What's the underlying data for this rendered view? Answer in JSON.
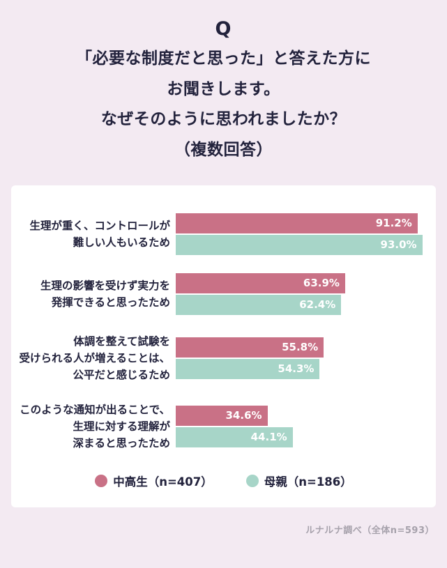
{
  "page": {
    "q_label": "Q",
    "title_lines": [
      "「必要な制度だと思った」と答えた方に",
      "お聞きします。",
      "なぜそのように思われましたか？",
      "（複数回答）"
    ],
    "footer": "ルナルナ調べ（全体n=593）"
  },
  "colors": {
    "background": "#f3eaf2",
    "card": "#ffffff",
    "title_text": "#22223c",
    "footer_text": "#a6a1ab"
  },
  "chart_data": {
    "type": "bar",
    "orientation": "horizontal",
    "xlim": [
      0,
      100
    ],
    "grid": false,
    "legend_position": "bottom",
    "categories": [
      [
        "生理が重く、コントロールが",
        "難しい人もいるため"
      ],
      [
        "生理の影響を受けず実力を",
        "発揮できると思ったため"
      ],
      [
        "体調を整えて試験を",
        "受けられる人が増えることは、",
        "公平だと感じるため"
      ],
      [
        "このような通知が出ることで、",
        "生理に対する理解が",
        "深まると思ったため"
      ]
    ],
    "series": [
      {
        "key": "students",
        "name": "中高生（n=407）",
        "color": "#c97186",
        "values": [
          91.2,
          63.9,
          55.8,
          34.6
        ],
        "labels": [
          "91.2%",
          "63.9%",
          "55.8%",
          "34.6%"
        ]
      },
      {
        "key": "mothers",
        "name": "母親（n=186）",
        "color": "#a7d5c8",
        "values": [
          93.0,
          62.4,
          54.3,
          44.1
        ],
        "labels": [
          "93.0%",
          "62.4%",
          "54.3%",
          "44.1%"
        ]
      }
    ]
  }
}
